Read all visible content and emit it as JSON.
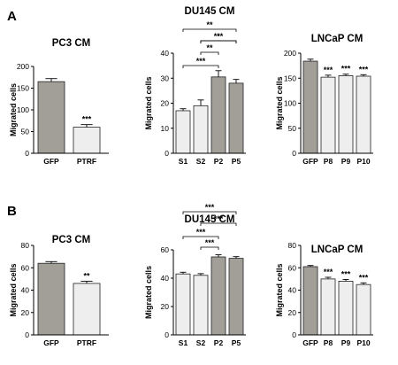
{
  "panel_labels": [
    "A",
    "B"
  ],
  "colors": {
    "bar_control": "#a29e98",
    "bar_treated": "#eeeeee",
    "bar_outline": "#222222"
  },
  "chart_data": [
    {
      "panel": "A",
      "type": "bar",
      "title": "PC3 CM",
      "ylabel": "Migrated cells",
      "ylim": [
        0,
        200
      ],
      "yticks": [
        "0",
        "50",
        "100",
        "150",
        "200"
      ],
      "categories": [
        "GFP",
        "PTRF"
      ],
      "values": [
        165,
        60
      ],
      "errors": [
        7,
        6
      ],
      "colors": [
        "#a29e98",
        "#eeeeee"
      ],
      "significance": [
        "",
        "***"
      ],
      "brackets": []
    },
    {
      "panel": "A",
      "type": "bar",
      "title": "DU145 CM",
      "ylabel": "Migrated cells",
      "ylim": [
        0,
        40
      ],
      "yticks": [
        "0",
        "10",
        "20",
        "30",
        "40"
      ],
      "categories": [
        "S1",
        "S2",
        "P2",
        "P5"
      ],
      "values": [
        17,
        19,
        30.5,
        28
      ],
      "errors": [
        0.8,
        2.3,
        2.5,
        1.5
      ],
      "colors": [
        "#eeeeee",
        "#eeeeee",
        "#a29e98",
        "#a29e98"
      ],
      "significance": [
        "",
        "",
        "",
        ""
      ],
      "brackets": [
        {
          "from": 0,
          "to": 2,
          "label": "***"
        },
        {
          "from": 1,
          "to": 2,
          "label": "**"
        },
        {
          "from": 1,
          "to": 3,
          "label": "*"
        },
        {
          "from": 1,
          "to": 3,
          "label": "***"
        },
        {
          "from": 0,
          "to": 3,
          "label": "**"
        }
      ]
    },
    {
      "panel": "A",
      "type": "bar",
      "title": "LNCaP CM",
      "ylabel": "Migrated cells",
      "ylim": [
        0,
        200
      ],
      "yticks": [
        "0",
        "50",
        "100",
        "150",
        "200"
      ],
      "categories": [
        "GFP",
        "P8",
        "P9",
        "P10"
      ],
      "values": [
        184,
        152,
        155,
        154
      ],
      "errors": [
        4,
        4,
        3,
        3
      ],
      "colors": [
        "#a29e98",
        "#eeeeee",
        "#eeeeee",
        "#eeeeee"
      ],
      "significance": [
        "",
        "***",
        "***",
        "***"
      ],
      "brackets": []
    },
    {
      "panel": "B",
      "type": "bar",
      "title": "PC3 CM",
      "ylabel": "Migrated cells",
      "ylim": [
        0,
        80
      ],
      "yticks": [
        "0",
        "20",
        "40",
        "60",
        "80"
      ],
      "categories": [
        "GFP",
        "PTRF"
      ],
      "values": [
        64,
        46
      ],
      "errors": [
        1.5,
        2
      ],
      "colors": [
        "#a29e98",
        "#eeeeee"
      ],
      "significance": [
        "",
        "**"
      ],
      "brackets": []
    },
    {
      "panel": "B",
      "type": "bar",
      "title": "DU145 CM",
      "ylabel": "Migrated cells",
      "ylim": [
        0,
        60
      ],
      "yticks": [
        "0",
        "20",
        "40",
        "60"
      ],
      "categories": [
        "S1",
        "S2",
        "P2",
        "P5"
      ],
      "values": [
        43,
        42,
        55,
        54
      ],
      "errors": [
        1.2,
        1.2,
        1.5,
        1.2
      ],
      "colors": [
        "#eeeeee",
        "#eeeeee",
        "#a29e98",
        "#a29e98"
      ],
      "significance": [
        "",
        "",
        "",
        ""
      ],
      "brackets": [
        {
          "from": 1,
          "to": 2,
          "label": "***"
        },
        {
          "from": 0,
          "to": 2,
          "label": "***"
        },
        {
          "from": 1,
          "to": 3,
          "label": "***"
        },
        {
          "from": 0,
          "to": 3,
          "label": "***"
        }
      ]
    },
    {
      "panel": "B",
      "type": "bar",
      "title": "LNCaP CM",
      "ylabel": "Migrated cells",
      "ylim": [
        0,
        80
      ],
      "yticks": [
        "0",
        "20",
        "40",
        "60",
        "80"
      ],
      "categories": [
        "GFP",
        "P8",
        "P9",
        "P10"
      ],
      "values": [
        61,
        50,
        48,
        45
      ],
      "errors": [
        1,
        1.5,
        1.5,
        1.5
      ],
      "colors": [
        "#a29e98",
        "#eeeeee",
        "#eeeeee",
        "#eeeeee"
      ],
      "significance": [
        "",
        "***",
        "***",
        "***"
      ],
      "brackets": []
    }
  ]
}
